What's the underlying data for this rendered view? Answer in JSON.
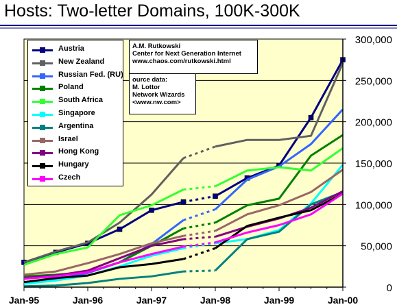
{
  "header": {
    "title": "Hosts: Two-letter Domains, 100K-300K"
  },
  "credit": {
    "lines": [
      "A.M. Rutkowski",
      "Center for Next Generation Internet",
      "www.chaos.com/rutkowski.html"
    ]
  },
  "source": {
    "lines": [
      "ource data:",
      "M. Lottor",
      "Network Wizards",
      "<www.nw.com>"
    ]
  },
  "chart_data": {
    "type": "line",
    "title": "Hosts: Two-letter Domains, 100K-300K",
    "xlabel": "",
    "ylabel": "",
    "x_ticks": [
      "Jan-95",
      "Jan-96",
      "Jan-97",
      "Jan-98",
      "Jan-99",
      "Jan-00"
    ],
    "y_ticks": [
      "0",
      "50,000",
      "100,000",
      "150,000",
      "200,000",
      "250,000",
      "300,000"
    ],
    "ylim": [
      0,
      300000
    ],
    "xlim": [
      1995.0,
      2000.0
    ],
    "grid": "horizontal",
    "background": "#ffffcc",
    "legend_position": "top-left",
    "dashed_gap": "Jul-97 to Jan-98 (dotted connector)",
    "series": [
      {
        "name": "Austria",
        "color": "#000080",
        "x": [
          1995.0,
          1995.5,
          1996.0,
          1996.5,
          1997.0,
          1997.5,
          1998.0,
          1998.5,
          1999.0,
          1999.5,
          2000.0
        ],
        "y": [
          30000,
          42000,
          53000,
          70000,
          93000,
          103000,
          110000,
          132000,
          147000,
          205000,
          275000
        ]
      },
      {
        "name": "New Zealand",
        "color": "#606060",
        "x": [
          1995.0,
          1995.5,
          1996.0,
          1996.5,
          1997.0,
          1997.5,
          1998.0,
          1998.5,
          1999.0,
          1999.5,
          2000.0
        ],
        "y": [
          30000,
          43000,
          54000,
          78000,
          112000,
          156000,
          170000,
          178000,
          178000,
          183000,
          271000
        ]
      },
      {
        "name": "Russian Fed. (RU)",
        "color": "#3366ff",
        "x": [
          1995.0,
          1995.5,
          1996.0,
          1996.5,
          1997.0,
          1997.5,
          1998.0,
          1998.5,
          1999.0,
          1999.5,
          2000.0
        ],
        "y": [
          5000,
          9000,
          17000,
          30000,
          52000,
          81000,
          94000,
          130000,
          146000,
          173000,
          215000
        ]
      },
      {
        "name": "Poland",
        "color": "#008000",
        "x": [
          1995.0,
          1995.5,
          1996.0,
          1996.5,
          1997.0,
          1997.5,
          1998.0,
          1998.5,
          1999.0,
          1999.5,
          2000.0
        ],
        "y": [
          13000,
          15000,
          18000,
          30000,
          50000,
          71000,
          78000,
          99000,
          107000,
          159000,
          184000
        ]
      },
      {
        "name": "South Africa",
        "color": "#33ff33",
        "x": [
          1995.0,
          1995.5,
          1996.0,
          1996.5,
          1997.0,
          1997.5,
          1998.0,
          1998.5,
          1999.0,
          1999.5,
          2000.0
        ],
        "y": [
          27000,
          40000,
          48000,
          87000,
          99000,
          118000,
          122000,
          141000,
          145000,
          141000,
          168000
        ]
      },
      {
        "name": "Singapore",
        "color": "#00ffff",
        "x": [
          1995.0,
          1995.5,
          1996.0,
          1996.5,
          1997.0,
          1997.5,
          1998.0,
          1998.5,
          1999.0,
          1999.5,
          2000.0
        ],
        "y": [
          4000,
          8000,
          14000,
          25000,
          38000,
          47000,
          53000,
          58000,
          69000,
          101000,
          148000
        ]
      },
      {
        "name": "Argentina",
        "color": "#008080",
        "x": [
          1995.0,
          1995.5,
          1996.0,
          1996.5,
          1997.0,
          1997.5,
          1998.0,
          1998.5,
          1999.0,
          1999.5,
          2000.0
        ],
        "y": [
          1000,
          2000,
          5000,
          10000,
          13000,
          19000,
          20000,
          58000,
          67000,
          100000,
          115000
        ]
      },
      {
        "name": "Israel",
        "color": "#996666",
        "x": [
          1995.0,
          1995.5,
          1996.0,
          1996.5,
          1997.0,
          1997.5,
          1998.0,
          1998.5,
          1999.0,
          1999.5,
          2000.0
        ],
        "y": [
          15000,
          19000,
          29000,
          40000,
          53000,
          62000,
          68000,
          88000,
          99000,
          115000,
          142000
        ]
      },
      {
        "name": "Hong Kong",
        "color": "#800080",
        "x": [
          1995.0,
          1995.5,
          1996.0,
          1996.5,
          1997.0,
          1997.5,
          1998.0,
          1998.5,
          1999.0,
          1999.5,
          2000.0
        ],
        "y": [
          11000,
          14000,
          20000,
          35000,
          50000,
          58000,
          61000,
          73000,
          83000,
          96000,
          116000
        ]
      },
      {
        "name": "Hungary",
        "color": "#000000",
        "x": [
          1995.0,
          1995.5,
          1996.0,
          1996.5,
          1997.0,
          1997.5,
          1998.0,
          1998.5,
          1999.0,
          1999.5,
          2000.0
        ],
        "y": [
          6000,
          11000,
          14000,
          24000,
          28000,
          34000,
          47000,
          74000,
          84000,
          93000,
          113000
        ]
      },
      {
        "name": "Czech",
        "color": "#ff00ff",
        "x": [
          1995.0,
          1995.5,
          1996.0,
          1996.5,
          1997.0,
          1997.5,
          1998.0,
          1998.5,
          1999.0,
          1999.5,
          2000.0
        ],
        "y": [
          10000,
          13000,
          18000,
          30000,
          40000,
          49000,
          54000,
          66000,
          75000,
          88000,
          113000
        ]
      }
    ]
  }
}
